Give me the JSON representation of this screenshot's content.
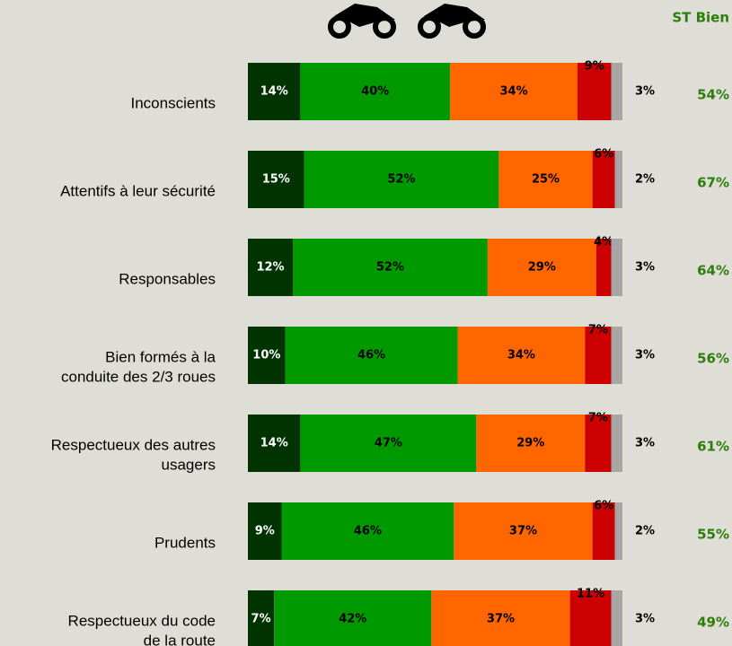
{
  "chart_data": {
    "type": "bar",
    "orientation": "horizontal",
    "stacked": true,
    "categories": [
      [
        "Inconscients"
      ],
      [
        "Attentifs à leur sécurité"
      ],
      [
        "Responsables"
      ],
      [
        "Bien formés à la",
        "conduite des 2/3 roues"
      ],
      [
        "Respectueux des autres",
        "usagers"
      ],
      [
        "Prudents"
      ],
      [
        "Respectueux du code",
        "de la route"
      ]
    ],
    "series": [
      {
        "color": "#003300",
        "values": [
          14,
          15,
          12,
          10,
          14,
          9,
          7
        ],
        "value_labels": [
          "14%",
          "15%",
          "12%",
          "10%",
          "14%",
          "9%",
          "7%"
        ]
      },
      {
        "color": "#009900",
        "values": [
          40,
          52,
          52,
          46,
          47,
          46,
          42
        ],
        "value_labels": [
          "40%",
          "52%",
          "52%",
          "46%",
          "47%",
          "46%",
          "42%"
        ]
      },
      {
        "color": "#ff6600",
        "values": [
          34,
          25,
          29,
          34,
          29,
          37,
          37
        ],
        "value_labels": [
          "34%",
          "25%",
          "29%",
          "34%",
          "29%",
          "37%",
          "37%"
        ]
      },
      {
        "color": "#cc0000",
        "values": [
          9,
          6,
          4,
          7,
          7,
          6,
          11
        ],
        "value_labels": [
          "9%",
          "6%",
          "4%",
          "7%",
          "7%",
          "6%",
          "11%"
        ]
      },
      {
        "color": "#a6a6a6",
        "values": [
          3,
          2,
          3,
          3,
          3,
          2,
          3
        ],
        "value_labels": [
          "3%",
          "2%",
          "3%",
          "3%",
          "3%",
          "2%",
          "3%"
        ]
      }
    ],
    "summary": {
      "title": "ST Bien",
      "color": "#2e7d0a",
      "values": [
        54,
        67,
        64,
        56,
        61,
        55,
        49
      ],
      "value_labels": [
        "54%",
        "67%",
        "64%",
        "56%",
        "61%",
        "55%",
        "49%"
      ]
    }
  }
}
